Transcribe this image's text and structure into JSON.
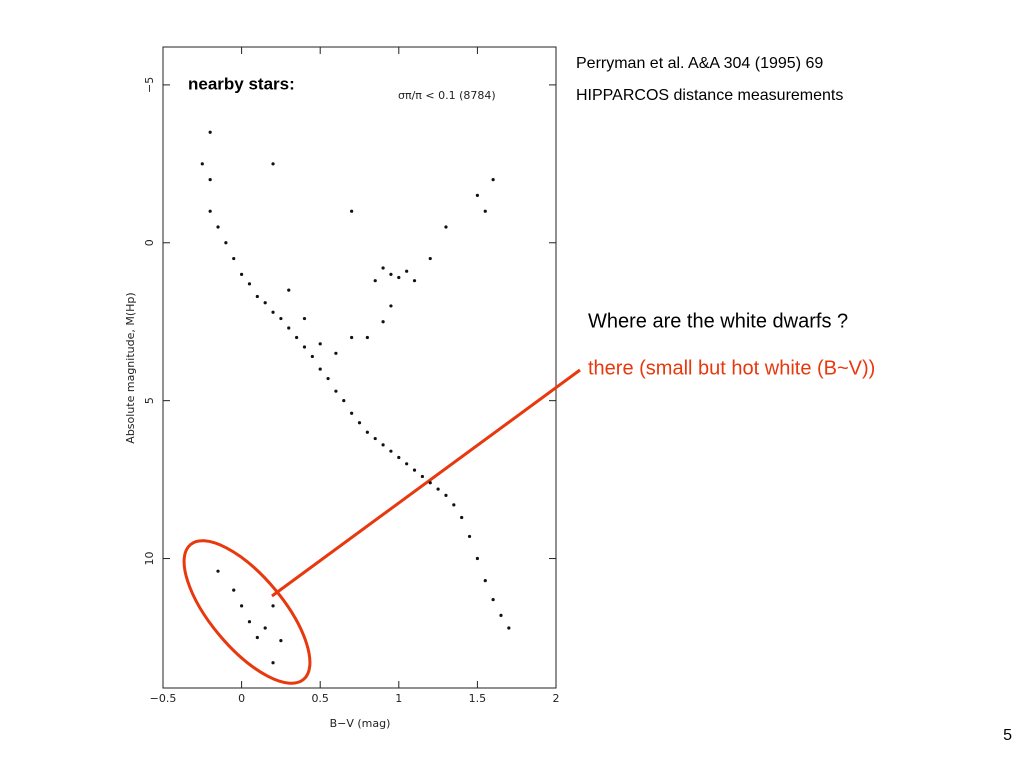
{
  "chart_data": {
    "type": "scatter",
    "title": "nearby stars:",
    "annotation": "σπ/π < 0.1 (8784)",
    "x_label": "B−V (mag)",
    "y_label": "Absolute magnitude, M(Hp)",
    "color": "#111111",
    "invert_y": true,
    "xlim": [
      -0.5,
      2
    ],
    "ylim": [
      -6.2,
      14.1
    ],
    "xticks": [
      {
        "value": -0.5,
        "label": "−0.5"
      },
      0,
      0.5,
      1,
      1.5,
      2
    ],
    "yticks": [
      {
        "value": -5,
        "label": "−5"
      },
      0,
      5,
      10
    ],
    "x": [
      -0.2,
      -0.15,
      -0.1,
      -0.05,
      0,
      0.05,
      0.1,
      0.15,
      0.2,
      0.25,
      0.3,
      0.35,
      0.4,
      0.45,
      0.5,
      0.55,
      0.6,
      0.65,
      0.7,
      0.75,
      0.8,
      0.85,
      0.9,
      0.95,
      1.0,
      1.05,
      1.1,
      1.15,
      1.2,
      1.25,
      1.3,
      1.35,
      1.4,
      1.45,
      1.5,
      1.55,
      1.6,
      1.65,
      1.7,
      0.85,
      0.9,
      0.95,
      1.0,
      1.05,
      1.1,
      0.9,
      0.8,
      0.95,
      1.2,
      1.3,
      1.5,
      1.55,
      1.6,
      0.7,
      0.2,
      -0.2,
      -0.25,
      -0.2,
      0.6,
      0.7,
      0.5,
      0.3,
      0.4,
      -0.15,
      0,
      0.05,
      0.1,
      0.2,
      0.25,
      0.2,
      -0.05,
      0.15
    ],
    "values": [
      -1,
      -0.5,
      0,
      0.5,
      1,
      1.3,
      1.7,
      1.9,
      2.2,
      2.4,
      2.7,
      3,
      3.3,
      3.6,
      4,
      4.3,
      4.7,
      5,
      5.4,
      5.7,
      6,
      6.2,
      6.4,
      6.6,
      6.8,
      7,
      7.2,
      7.4,
      7.6,
      7.8,
      8,
      8.3,
      8.7,
      9.3,
      10,
      10.7,
      11.3,
      11.8,
      12.2,
      1.2,
      0.8,
      1.0,
      1.1,
      0.9,
      1.2,
      2.5,
      3,
      2,
      0.5,
      -0.5,
      -1.5,
      -1,
      -2,
      -1,
      -2.5,
      -2,
      -2.5,
      -3.5,
      3.5,
      3.0,
      3.2,
      1.5,
      2.4,
      10.4,
      11.5,
      12,
      12.5,
      11.5,
      12.6,
      13.3,
      11,
      12.2
    ]
  },
  "slide": {
    "reference": "Perryman et al. A&A 304 (1995) 69",
    "dataset": "HIPPARCOS distance measurements",
    "question": "Where are the white dwarfs ?",
    "answer": "there (small but hot white (B~V))",
    "page_number": "5"
  }
}
